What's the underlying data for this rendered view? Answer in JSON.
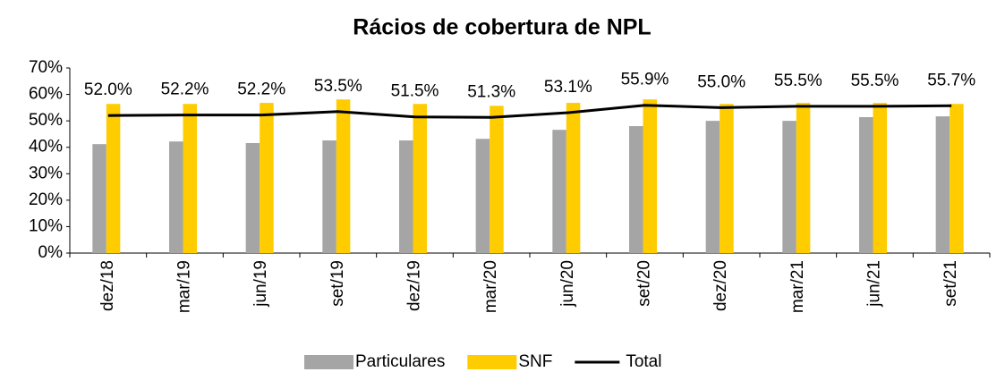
{
  "chart_data": {
    "type": "bar-line",
    "title": "Rácios de cobertura de NPL",
    "categories": [
      "dez/18",
      "mar/19",
      "jun/19",
      "set/19",
      "dez/19",
      "mar/20",
      "jun/20",
      "set/20",
      "dez/20",
      "mar/21",
      "jun/21",
      "set/21"
    ],
    "series": [
      {
        "name": "Particulares",
        "type": "bar",
        "color": "#a5a5a5",
        "values": [
          41.2,
          42.2,
          41.6,
          42.6,
          42.6,
          43.2,
          46.6,
          48.0,
          50.0,
          50.0,
          51.4,
          51.7
        ]
      },
      {
        "name": "SNF",
        "type": "bar",
        "color": "#ffcc00",
        "values": [
          56.4,
          56.4,
          56.8,
          58.1,
          56.4,
          55.7,
          56.8,
          58.1,
          56.4,
          56.8,
          56.8,
          56.4
        ]
      },
      {
        "name": "Total",
        "type": "line",
        "color": "#000000",
        "values": [
          52.0,
          52.2,
          52.2,
          53.5,
          51.5,
          51.3,
          53.1,
          55.9,
          55.0,
          55.5,
          55.5,
          55.7
        ],
        "value_labels": [
          "52.0%",
          "52.2%",
          "52.2%",
          "53.5%",
          "51.5%",
          "51.3%",
          "53.1%",
          "55.9%",
          "55.0%",
          "55.5%",
          "55.5%",
          "55.7%"
        ]
      }
    ],
    "ylim": [
      0,
      70
    ],
    "yticks": [
      {
        "value": 0,
        "label": "0%"
      },
      {
        "value": 10,
        "label": "10%"
      },
      {
        "value": 20,
        "label": "20%"
      },
      {
        "value": 30,
        "label": "30%"
      },
      {
        "value": 40,
        "label": "40%"
      },
      {
        "value": 50,
        "label": "50%"
      },
      {
        "value": 60,
        "label": "60%"
      },
      {
        "value": 70,
        "label": "70%"
      }
    ],
    "legend": "bottom"
  }
}
